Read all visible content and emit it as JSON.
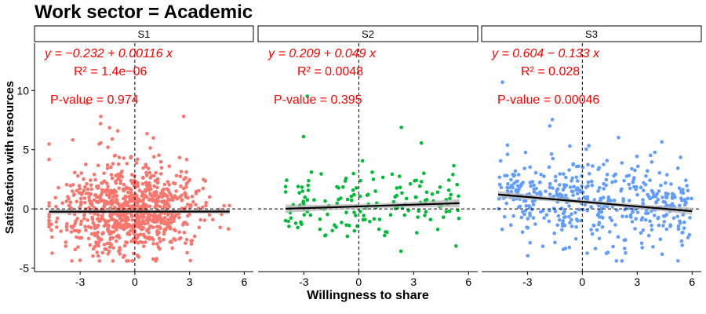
{
  "chart_data": {
    "type": "scatter",
    "title": "Work sector = Academic",
    "xlabel": "Willingness to share",
    "ylabel": "Satisfaction with resources",
    "xlim": [
      -5.5,
      6.5
    ],
    "ylim": [
      -5.3,
      14
    ],
    "x_ticks": [
      -3,
      0,
      3,
      6
    ],
    "y_ticks": [
      -5,
      0,
      5,
      10
    ],
    "grid": false,
    "reference_lines": {
      "x": 0,
      "y": 0
    },
    "facets": [
      {
        "label": "S1",
        "color": "#F8766D",
        "n_points": 900,
        "x_range": [
          -4.7,
          5.2
        ],
        "fit": {
          "intercept": -0.232,
          "slope": 0.00116
        },
        "equation": "y = −0.232 + 0.00116 x",
        "r2": "R² = 1.4e−06",
        "pvalue": "P-value = 0.974"
      },
      {
        "label": "S2",
        "color": "#00BA38",
        "n_points": 160,
        "x_range": [
          -4.0,
          5.5
        ],
        "fit": {
          "intercept": 0.209,
          "slope": 0.049
        },
        "equation": "y = 0.209 + 0.049 x",
        "r2": "R² = 0.0048",
        "pvalue": "P-value = 0.395"
      },
      {
        "label": "S3",
        "color": "#619CFF",
        "n_points": 480,
        "x_range": [
          -4.6,
          6.0
        ],
        "fit": {
          "intercept": 0.604,
          "slope": -0.133
        },
        "equation": "y = 0.604 − 0.133 x",
        "r2": "R² = 0.028",
        "pvalue": "P-value = 0.00046"
      }
    ]
  }
}
